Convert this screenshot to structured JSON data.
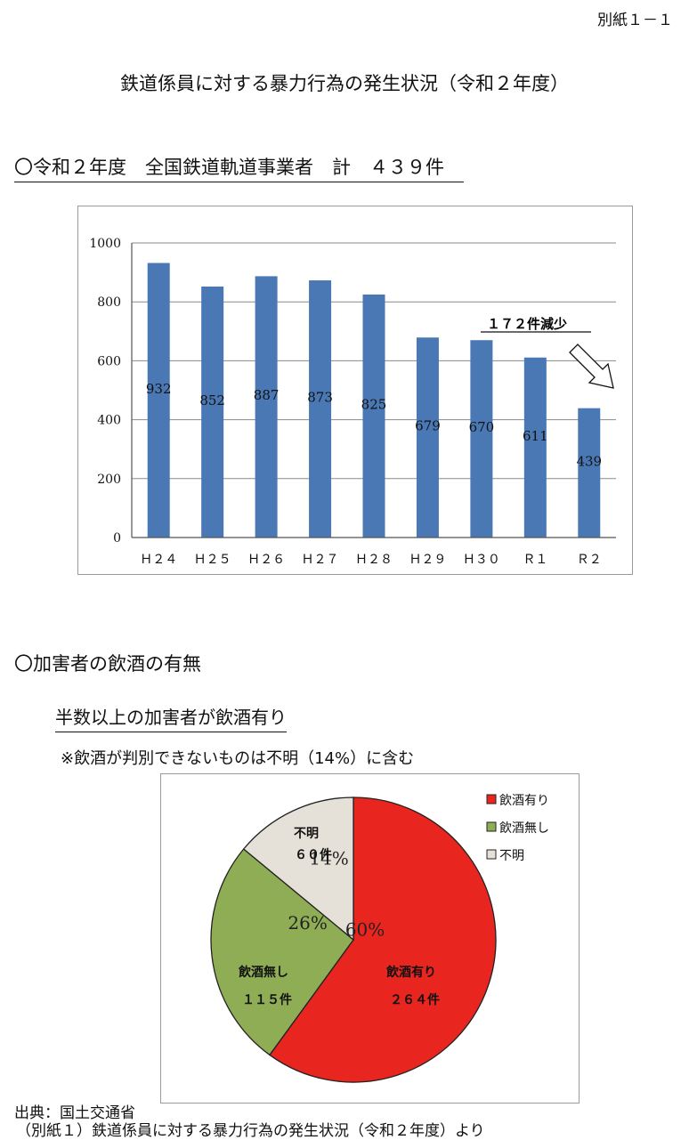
{
  "doc_ref": "別紙１－１",
  "page_title": "鉄道係員に対する暴力行為の発生状況（令和２年度）",
  "section1": {
    "heading": "〇令和２年度　全国鉄道軌道事業者　計　４３９件"
  },
  "section2": {
    "heading": "〇加害者の飲酒の有無",
    "subheading": "半数以上の加害者が飲酒有り",
    "note": "※飲酒が判別できないものは不明（14%）に含む"
  },
  "source": {
    "line1": "出典：国土交通省",
    "line2": "（別紙１）鉄道係員に対する暴力行為の発生状況（令和２年度）より"
  },
  "chart_data": [
    {
      "type": "bar",
      "categories": [
        "Ｈ２４",
        "Ｈ２５",
        "Ｈ２６",
        "Ｈ２７",
        "Ｈ２８",
        "Ｈ２９",
        "Ｈ３０",
        "Ｒ１",
        "Ｒ２"
      ],
      "values": [
        932,
        852,
        887,
        873,
        825,
        679,
        670,
        611,
        439
      ],
      "ylim": [
        0,
        1000
      ],
      "yticks": [
        0,
        200,
        400,
        600,
        800,
        1000
      ],
      "grid": true,
      "bar_color": "#4a78b5",
      "annotation": "１７２件減少"
    },
    {
      "type": "pie",
      "labels": [
        "飲酒有り",
        "飲酒無し",
        "不明"
      ],
      "percent_labels": [
        "60%",
        "26%",
        "14%"
      ],
      "percentages": [
        60,
        26,
        14
      ],
      "slice_texts": [
        {
          "name": "飲酒有り",
          "count": "２６４件"
        },
        {
          "name": "飲酒無し",
          "count": "１１５件"
        },
        {
          "name": "不明",
          "count": "６０件"
        }
      ],
      "colors": [
        "#e8251e",
        "#8fad55",
        "#e6e1d8"
      ],
      "legend_position": "top-right"
    }
  ]
}
